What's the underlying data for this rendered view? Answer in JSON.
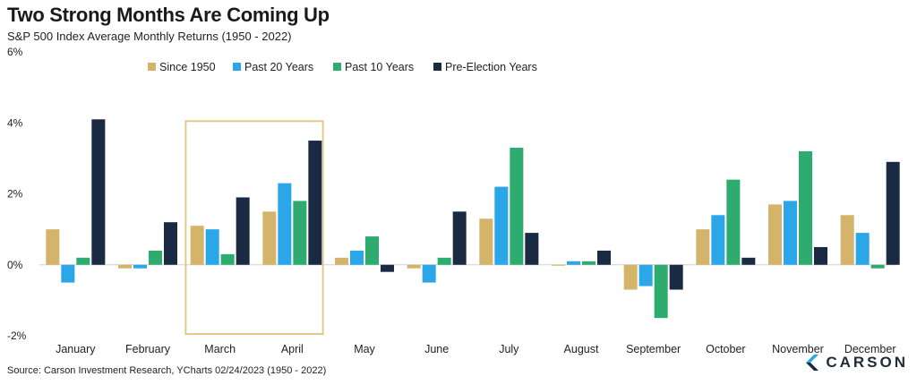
{
  "header": {
    "title": "Two Strong Months Are Coming Up",
    "subtitle": "S&P 500 Index Average Monthly Returns (1950 - 2022)"
  },
  "footer": {
    "source": "Source: Carson Investment Research, YCharts 02/24/2023 (1950 - 2022)",
    "logo_text": "CARSON"
  },
  "chart_data": {
    "type": "bar",
    "categories": [
      "January",
      "February",
      "March",
      "April",
      "May",
      "June",
      "July",
      "August",
      "September",
      "October",
      "November",
      "December"
    ],
    "series": [
      {
        "name": "Since 1950",
        "color": "#d4b46a",
        "values": [
          1.0,
          -0.1,
          1.1,
          1.5,
          0.2,
          -0.1,
          1.3,
          0.0,
          -0.7,
          1.0,
          1.7,
          1.4
        ]
      },
      {
        "name": "Past 20 Years",
        "color": "#2ba6e8",
        "values": [
          -0.5,
          -0.1,
          1.0,
          2.3,
          0.4,
          -0.5,
          2.2,
          0.1,
          -0.6,
          1.4,
          1.8,
          0.9
        ]
      },
      {
        "name": "Past 10 Years",
        "color": "#2eab6f",
        "values": [
          0.2,
          0.4,
          0.3,
          1.8,
          0.8,
          0.2,
          3.3,
          0.1,
          -1.5,
          2.4,
          3.2,
          -0.1
        ]
      },
      {
        "name": "Pre-Election Years",
        "color": "#1b2a43",
        "values": [
          4.1,
          1.2,
          1.9,
          3.5,
          -0.2,
          1.5,
          0.9,
          0.4,
          -0.7,
          0.2,
          0.5,
          2.9
        ]
      }
    ],
    "yticks": [
      "6%",
      "4%",
      "2%",
      "0%",
      "-2%"
    ],
    "ylim": [
      -2,
      6
    ],
    "legend_position": "top",
    "highlight": {
      "categories": [
        "March",
        "April"
      ],
      "color": "#e3c98e"
    },
    "grid": false
  }
}
